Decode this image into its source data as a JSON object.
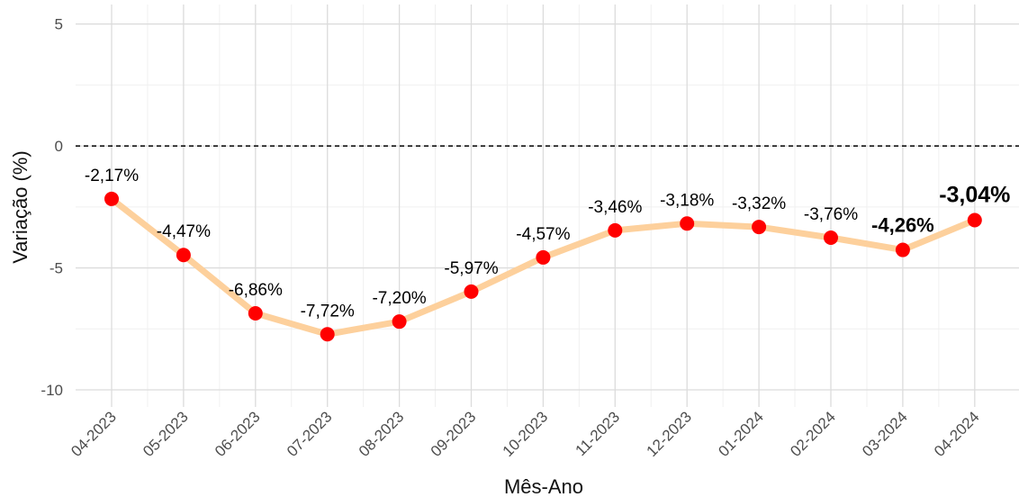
{
  "chart_data": {
    "type": "line",
    "x_label": "Mês-Ano",
    "y_label": "Variação (%)",
    "categories": [
      "04-2023",
      "05-2023",
      "06-2023",
      "07-2023",
      "08-2023",
      "09-2023",
      "10-2023",
      "11-2023",
      "12-2023",
      "01-2024",
      "02-2024",
      "03-2024",
      "04-2024"
    ],
    "series": [
      {
        "name": "Variação",
        "line_color": "#fdd09c",
        "color": "#ff0000",
        "values": [
          -2.17,
          -4.47,
          -6.86,
          -7.72,
          -7.2,
          -5.97,
          -4.57,
          -3.46,
          -3.18,
          -3.32,
          -3.76,
          -4.26,
          -3.04
        ],
        "value_labels": [
          "-2,17%",
          "-4,47%",
          "-6,86%",
          "-7,72%",
          "-7,20%",
          "-5,97%",
          "-4,57%",
          "-3,46%",
          "-3,18%",
          "-3,32%",
          "-3,76%",
          "-4,26%",
          "-3,04%"
        ]
      }
    ],
    "ylim": [
      -10.7,
      5.8
    ],
    "yticks": [
      5,
      0,
      -5,
      -10
    ],
    "reference_line": 0,
    "grid": true
  }
}
